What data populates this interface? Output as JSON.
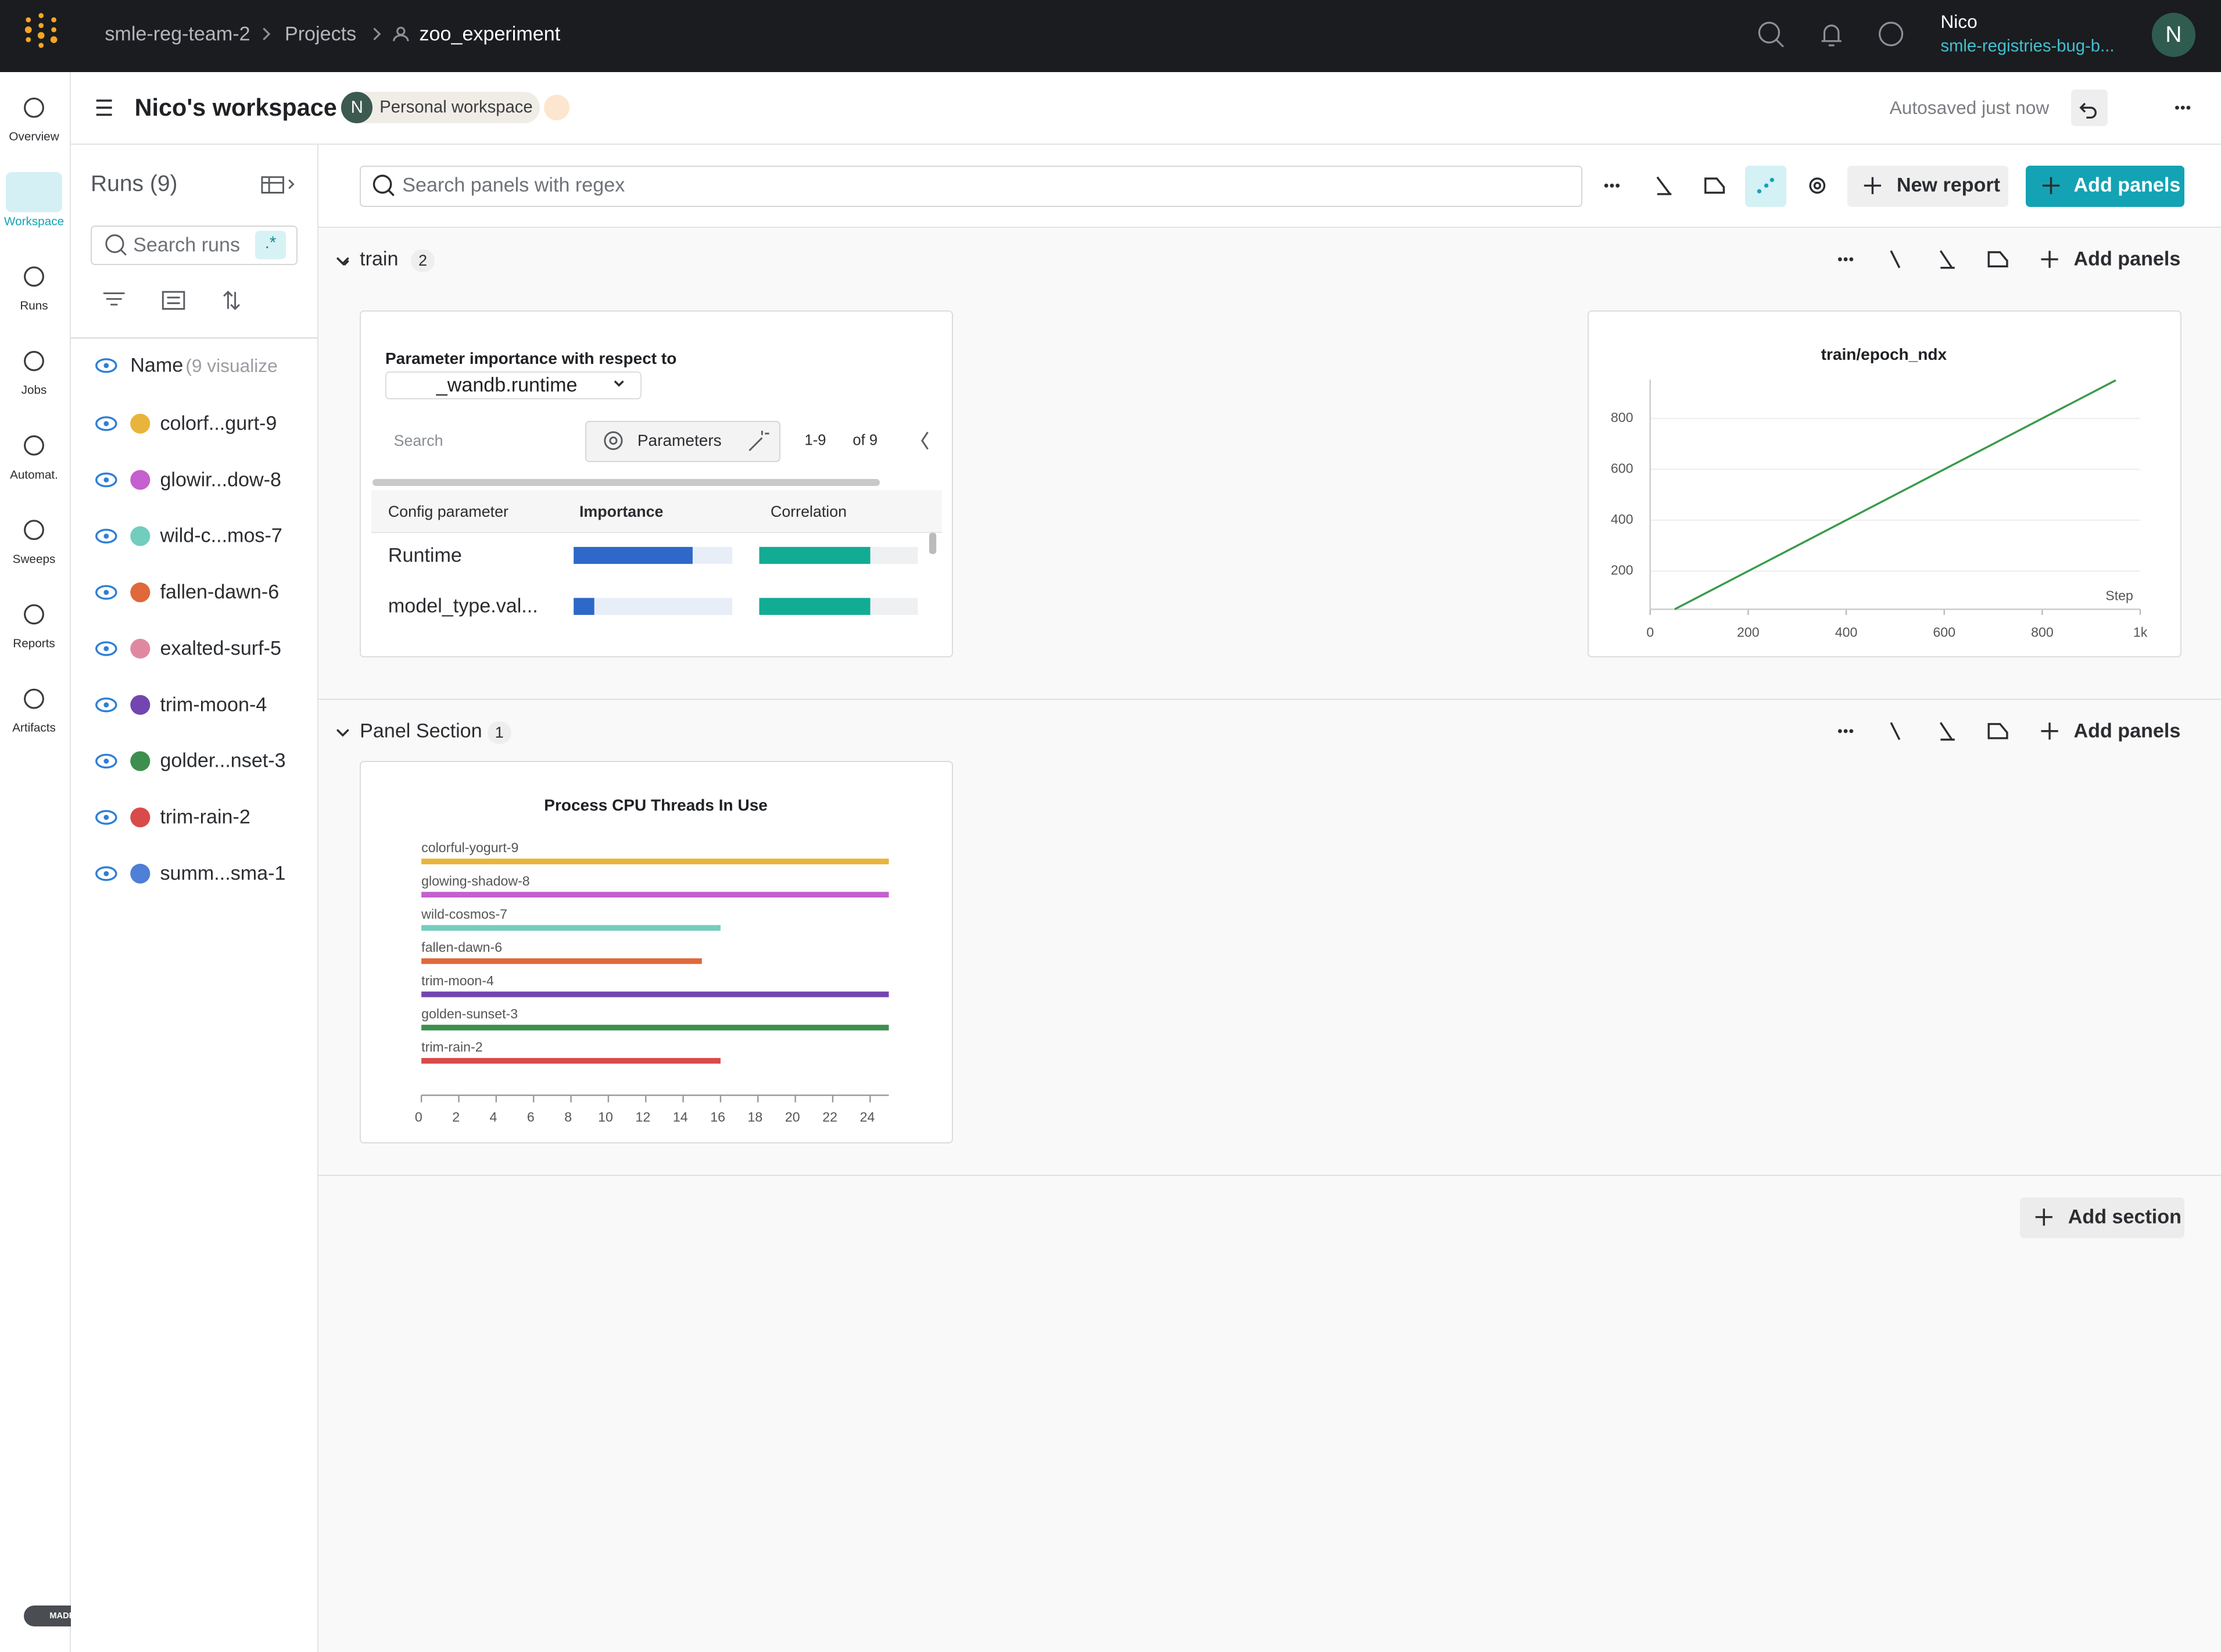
{
  "topbar": {
    "breadcrumbs": [
      "smle-reg-team-2",
      "Projects",
      "zoo_experiment"
    ],
    "user": {
      "name": "Nico",
      "org": "smle-registries-bug-b...",
      "initial": "N"
    }
  },
  "sidebar": {
    "items": [
      "Overview",
      "Workspace",
      "Runs",
      "Jobs",
      "Automat.",
      "Sweeps",
      "Reports",
      "Artifacts"
    ],
    "active": 1,
    "badge": "MADE WITH GIFOX"
  },
  "header": {
    "title": "Nico's workspace",
    "avatar": "N",
    "workspace_type": "Personal workspace",
    "status": "Autosaved just now"
  },
  "runs": {
    "title": "Runs (9)",
    "search": "Search runs",
    "regex": ".*",
    "name_header": "Name",
    "name_note": "(9 visualize",
    "items": [
      {
        "name": "colorf...gurt-9",
        "color": "#e8b43b"
      },
      {
        "name": "glowir...dow-8",
        "color": "#c55fcf"
      },
      {
        "name": "wild-c...mos-7",
        "color": "#72cdbf"
      },
      {
        "name": "fallen-dawn-6",
        "color": "#e0683a"
      },
      {
        "name": "exalted-surf-5",
        "color": "#e088a2"
      },
      {
        "name": "trim-moon-4",
        "color": "#7345b0"
      },
      {
        "name": "golder...nset-3",
        "color": "#3e8f4f"
      },
      {
        "name": "trim-rain-2",
        "color": "#d94a4a"
      },
      {
        "name": "summ...sma-1",
        "color": "#4f7fd6"
      }
    ]
  },
  "toolbar": {
    "search": "Search panels with regex",
    "new_report": "New report",
    "add_panels": "Add panels"
  },
  "sections": [
    {
      "title": "train",
      "count": "2",
      "add": "Add panels"
    },
    {
      "title": "Panel Section",
      "count": "1",
      "add": "Add panels"
    }
  ],
  "add_section": "Add section",
  "param_importance": {
    "title": "Parameter importance with respect to",
    "metric": "_wandb.runtime",
    "search": "Search",
    "button": "Parameters",
    "range": "1-9",
    "of": "of 9",
    "columns": [
      "Config parameter",
      "Importance",
      "Correlation"
    ],
    "rows": [
      {
        "name": "Runtime",
        "importance": 0.75,
        "correlation": 0.7
      },
      {
        "name": "model_type.val...",
        "importance": 0.13,
        "correlation": 0.7
      }
    ]
  },
  "chart_data": [
    {
      "type": "line",
      "title": "train/epoch_ndx",
      "x_label": "Step",
      "xlim": [
        0,
        1000
      ],
      "ylim": [
        50,
        980
      ],
      "xticks": [
        0,
        200,
        400,
        600,
        800,
        {
          "value": 1000,
          "label": "1k"
        }
      ],
      "yticks": [
        200,
        400,
        600,
        800
      ],
      "grid": true,
      "series": [
        {
          "x": [
            50,
            950
          ],
          "values": [
            50,
            950
          ],
          "color": "#3a9a4a"
        }
      ]
    },
    {
      "type": "bar",
      "orientation": "horizontal",
      "title": "Process CPU Threads In Use",
      "categories": [
        "colorful-yogurt-9",
        "glowing-shadow-8",
        "wild-cosmos-7",
        "fallen-dawn-6",
        "trim-moon-4",
        "golden-sunset-3",
        "trim-rain-2"
      ],
      "values": [
        25,
        25,
        16,
        15,
        25,
        25,
        16
      ],
      "colors": [
        "#e8b43b",
        "#c55fcf",
        "#72cdbf",
        "#e0683a",
        "#7345b0",
        "#3e8f4f",
        "#d94a4a"
      ],
      "xlim": [
        0,
        25
      ],
      "xticks": [
        0,
        2,
        4,
        6,
        8,
        10,
        12,
        14,
        16,
        18,
        20,
        22,
        24
      ]
    }
  ]
}
